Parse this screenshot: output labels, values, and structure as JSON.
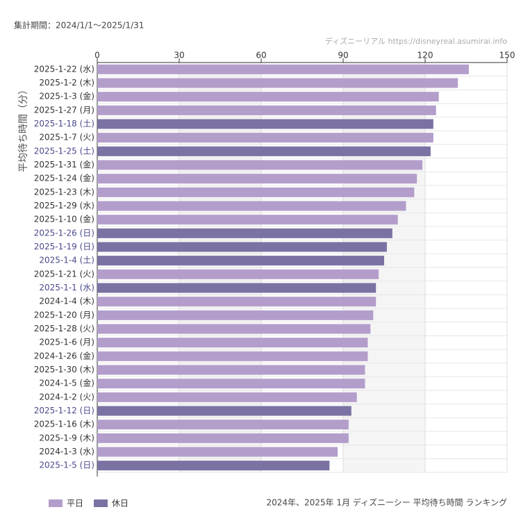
{
  "chart_data": {
    "type": "bar",
    "title": "2024年、2025年 1月 ディズニーシー 平均待ち時間 ランキング",
    "subtitle": "集計期間：2024/1/1～2025/1/31",
    "source": "ディズニーリアル https://disneyreal.asumirai.info",
    "ylabel": "平均待ち時間（分）",
    "categories": [
      "2025-1-22 (水)",
      "2025-1-2 (木)",
      "2025-1-3 (金)",
      "2025-1-27 (月)",
      "2025-1-18 (土)",
      "2025-1-7 (火)",
      "2025-1-25 (土)",
      "2025-1-31 (金)",
      "2025-1-24 (金)",
      "2025-1-23 (木)",
      "2025-1-29 (水)",
      "2025-1-10 (金)",
      "2025-1-26 (日)",
      "2025-1-19 (日)",
      "2025-1-4 (土)",
      "2025-1-21 (火)",
      "2025-1-1 (水)",
      "2024-1-4 (木)",
      "2025-1-20 (月)",
      "2025-1-28 (火)",
      "2025-1-6 (月)",
      "2024-1-26 (金)",
      "2025-1-30 (木)",
      "2024-1-5 (金)",
      "2024-1-2 (火)",
      "2025-1-12 (日)",
      "2025-1-16 (木)",
      "2025-1-9 (木)",
      "2024-1-3 (水)",
      "2025-1-5 (日)"
    ],
    "series": [
      {
        "name": "平日",
        "color": "#b39ecb",
        "values": [
          136,
          132,
          125,
          124,
          null,
          123,
          null,
          119,
          117,
          116,
          113,
          110,
          null,
          null,
          null,
          103,
          null,
          102,
          101,
          100,
          99,
          99,
          98,
          98,
          95,
          null,
          92,
          92,
          88,
          null
        ]
      },
      {
        "name": "休日",
        "color": "#7b72a3",
        "values": [
          null,
          null,
          null,
          null,
          123,
          null,
          122,
          null,
          null,
          null,
          null,
          null,
          108,
          106,
          105,
          null,
          102,
          null,
          null,
          null,
          null,
          null,
          null,
          null,
          null,
          93,
          null,
          null,
          null,
          85
        ]
      }
    ],
    "xlim": [
      0,
      150
    ],
    "xticks": [
      0,
      30,
      60,
      90,
      120,
      150
    ],
    "grid": true
  }
}
